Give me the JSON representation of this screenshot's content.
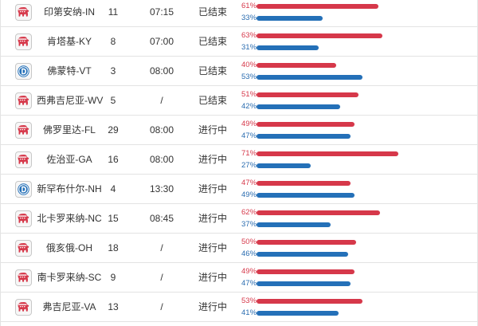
{
  "colors": {
    "republican": "#d6384a",
    "democrat": "#2470b8",
    "border": "#e3e3e3"
  },
  "rows": [
    {
      "party": "R",
      "icon": "elephant-icon",
      "state": "印第安纳-IN",
      "votes": "11",
      "time": "07:15",
      "status": "已结束",
      "rep_pct": "61%",
      "dem_pct": "33%",
      "rep": 0.61,
      "dem": 0.33
    },
    {
      "party": "R",
      "icon": "elephant-icon",
      "state": "肯塔基-KY",
      "votes": "8",
      "time": "07:00",
      "status": "已结束",
      "rep_pct": "63%",
      "dem_pct": "31%",
      "rep": 0.63,
      "dem": 0.31
    },
    {
      "party": "D",
      "icon": "democrat-d-icon",
      "state": "佛蒙特-VT",
      "votes": "3",
      "time": "08:00",
      "status": "已结束",
      "rep_pct": "40%",
      "dem_pct": "53%",
      "rep": 0.4,
      "dem": 0.53
    },
    {
      "party": "R",
      "icon": "elephant-icon",
      "state": "西弗吉尼亚-WV",
      "votes": "5",
      "time": "/",
      "status": "已结束",
      "rep_pct": "51%",
      "dem_pct": "42%",
      "rep": 0.51,
      "dem": 0.42
    },
    {
      "party": "R",
      "icon": "elephant-icon",
      "state": "佛罗里达-FL",
      "votes": "29",
      "time": "08:00",
      "status": "进行中",
      "rep_pct": "49%",
      "dem_pct": "47%",
      "rep": 0.49,
      "dem": 0.47
    },
    {
      "party": "R",
      "icon": "elephant-icon",
      "state": "佐治亚-GA",
      "votes": "16",
      "time": "08:00",
      "status": "进行中",
      "rep_pct": "71%",
      "dem_pct": "27%",
      "rep": 0.71,
      "dem": 0.27
    },
    {
      "party": "D",
      "icon": "democrat-d-icon",
      "state": "新罕布什尔-NH",
      "votes": "4",
      "time": "13:30",
      "status": "进行中",
      "rep_pct": "47%",
      "dem_pct": "49%",
      "rep": 0.47,
      "dem": 0.49
    },
    {
      "party": "R",
      "icon": "elephant-icon",
      "state": "北卡罗来纳-NC",
      "votes": "15",
      "time": "08:45",
      "status": "进行中",
      "rep_pct": "62%",
      "dem_pct": "37%",
      "rep": 0.62,
      "dem": 0.37
    },
    {
      "party": "R",
      "icon": "elephant-icon",
      "state": "俄亥俄-OH",
      "votes": "18",
      "time": "/",
      "status": "进行中",
      "rep_pct": "50%",
      "dem_pct": "46%",
      "rep": 0.5,
      "dem": 0.46
    },
    {
      "party": "R",
      "icon": "elephant-icon",
      "state": "南卡罗来纳-SC",
      "votes": "9",
      "time": "/",
      "status": "进行中",
      "rep_pct": "49%",
      "dem_pct": "47%",
      "rep": 0.49,
      "dem": 0.47
    },
    {
      "party": "R",
      "icon": "elephant-icon",
      "state": "弗吉尼亚-VA",
      "votes": "13",
      "time": "/",
      "status": "进行中",
      "rep_pct": "53%",
      "dem_pct": "41%",
      "rep": 0.53,
      "dem": 0.41
    }
  ]
}
